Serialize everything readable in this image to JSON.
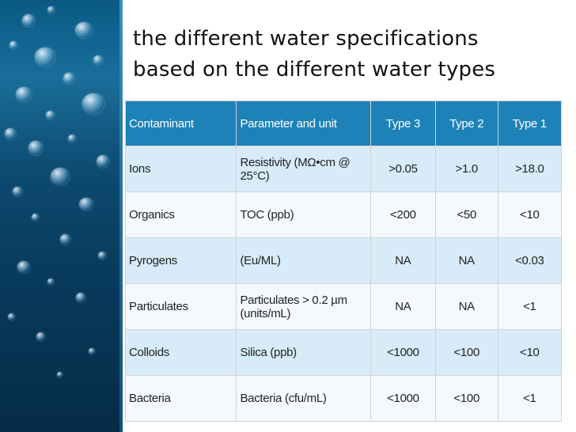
{
  "slide": {
    "title_line1": "the different water specifications",
    "title_line2": "based on the different water types"
  },
  "table": {
    "headers": {
      "contaminant": "Contaminant",
      "parameter": "Parameter and unit",
      "type3": "Type 3",
      "type2": "Type 2",
      "type1": "Type 1"
    },
    "rows": [
      {
        "contaminant": "Ions",
        "parameter": "Resistivity (MΩ•cm @ 25°C)",
        "type3": ">0.05",
        "type2": ">1.0",
        "type1": ">18.0"
      },
      {
        "contaminant": "Organics",
        "parameter": "TOC (ppb)",
        "type3": "<200",
        "type2": "<50",
        "type1": "<10"
      },
      {
        "contaminant": "Pyrogens",
        "parameter": "(Eu/ML)",
        "type3": "NA",
        "type2": "NA",
        "type1": "<0.03"
      },
      {
        "contaminant": "Particulates",
        "parameter": "Particulates > 0.2 µm (units/mL)",
        "type3": "NA",
        "type2": "NA",
        "type1": "<1"
      },
      {
        "contaminant": "Colloids",
        "parameter": "Silica (ppb)",
        "type3": "<1000",
        "type2": "<100",
        "type1": "<10"
      },
      {
        "contaminant": "Bacteria",
        "parameter": "Bacteria (cfu/mL)",
        "type3": "<1000",
        "type2": "<100",
        "type1": "<1"
      }
    ]
  },
  "colors": {
    "header_bg": "#1d82b8",
    "row_odd": "#d7ecf8",
    "row_even": "#f4f9fd",
    "side_image": "#0b5a86"
  }
}
